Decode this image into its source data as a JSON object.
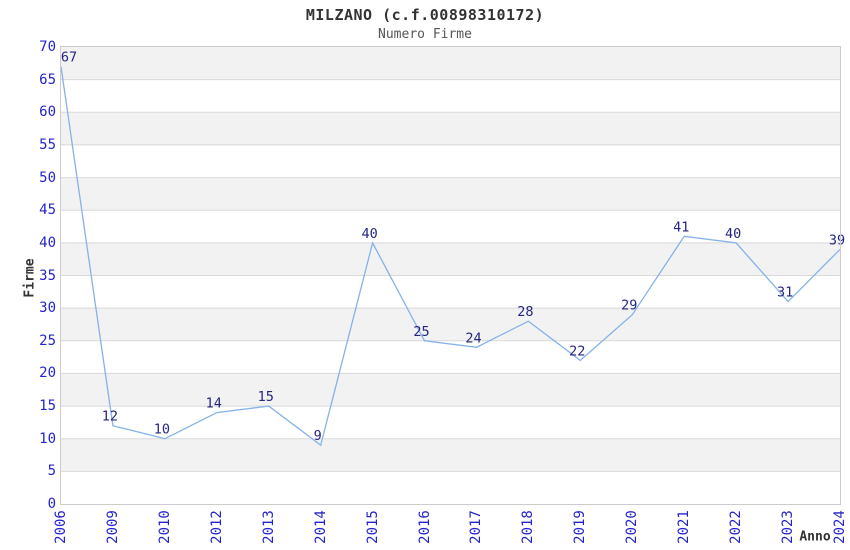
{
  "header": {
    "title": "MILZANO (c.f.00898310172)",
    "subtitle": "Numero Firme"
  },
  "chart_data": {
    "type": "line",
    "title": "MILZANO (c.f.00898310172)",
    "subtitle": "Numero Firme",
    "xlabel": "Anno",
    "ylabel": "Firme",
    "categories": [
      "2006",
      "2009",
      "2010",
      "2012",
      "2013",
      "2014",
      "2015",
      "2016",
      "2017",
      "2018",
      "2019",
      "2020",
      "2021",
      "2022",
      "2023",
      "2024"
    ],
    "values": [
      67,
      12,
      10,
      14,
      15,
      9,
      40,
      25,
      24,
      28,
      22,
      29,
      41,
      40,
      31,
      39
    ],
    "ylim": [
      0,
      70
    ],
    "ytick_step": 5,
    "grid": "horizontal-bands",
    "legend": "none",
    "show_data_labels": true,
    "colors": {
      "line": "#85b2e8",
      "tick_label": "#2424cc",
      "data_label": "#252582",
      "band": "#f2f2f2",
      "gridline": "#d9d9d9",
      "border": "#cccccc",
      "title": "#333333",
      "subtitle": "#555555",
      "axis_label": "#333333"
    }
  }
}
